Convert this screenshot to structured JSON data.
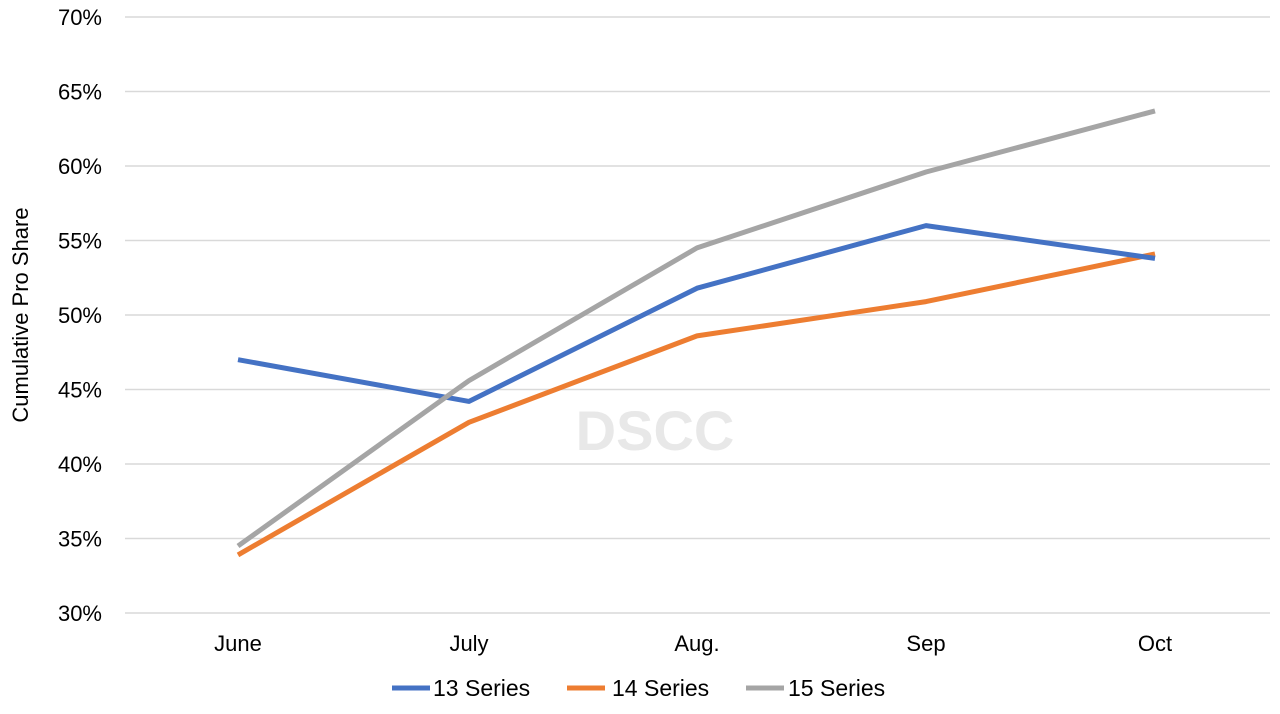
{
  "chart_data": {
    "type": "line",
    "title": "",
    "xlabel": "",
    "ylabel": "Cumulative Pro Share",
    "categories": [
      "June",
      "July",
      "Aug.",
      "Sep",
      "Oct"
    ],
    "ylim": [
      0.3,
      0.7
    ],
    "y_ticks": [
      0.3,
      0.35,
      0.4,
      0.45,
      0.5,
      0.55,
      0.6,
      0.65,
      0.7
    ],
    "y_tick_labels": [
      "30%",
      "35%",
      "40%",
      "45%",
      "50%",
      "55%",
      "60%",
      "65%",
      "70%"
    ],
    "grid": true,
    "legend_position": "bottom",
    "watermark": "DSCC",
    "series": [
      {
        "name": "13 Series",
        "color": "#4472C4",
        "values": [
          0.47,
          0.442,
          0.518,
          0.56,
          0.538
        ]
      },
      {
        "name": "14 Series",
        "color": "#ED7D31",
        "values": [
          0.339,
          0.428,
          0.486,
          0.509,
          0.541
        ]
      },
      {
        "name": "15 Series",
        "color": "#A5A5A5",
        "values": [
          0.345,
          0.456,
          0.545,
          0.596,
          0.637
        ]
      }
    ]
  }
}
